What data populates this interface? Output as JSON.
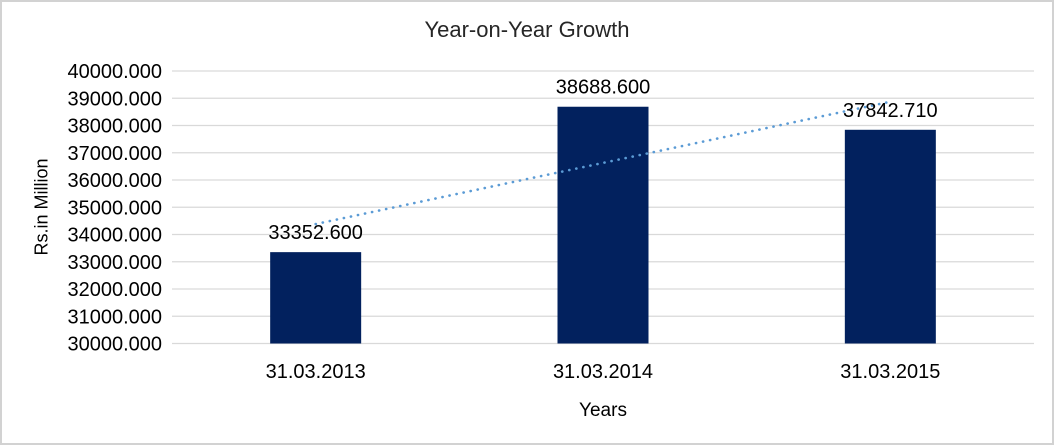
{
  "chart_data": {
    "type": "bar",
    "title": "Year-on-Year Growth",
    "xlabel": "Years",
    "ylabel": "Rs.in Million",
    "categories": [
      "31.03.2013",
      "31.03.2014",
      "31.03.2015"
    ],
    "values": [
      33352.6,
      38688.6,
      37842.71
    ],
    "data_labels": [
      "33352.600",
      "38688.600",
      "37842.710"
    ],
    "ylim": [
      30000,
      40000
    ],
    "ytick_step": 1000,
    "ytick_labels": [
      "30000.000",
      "31000.000",
      "32000.000",
      "33000.000",
      "34000.000",
      "35000.000",
      "36000.000",
      "37000.000",
      "38000.000",
      "39000.000",
      "40000.000"
    ],
    "grid": true,
    "legend": "none",
    "trendline": {
      "type": "linear",
      "style": "dotted",
      "start_value": 34383,
      "end_value": 38873
    },
    "colors": {
      "bar": "#02215E",
      "trendline": "#5B9BD5",
      "gridline": "#D9D9D9",
      "axis_line": "#D9D9D9",
      "text": "#000000",
      "title_text": "#262626",
      "frame_border": "#D2D2D2",
      "background": "#FFFFFF"
    }
  }
}
